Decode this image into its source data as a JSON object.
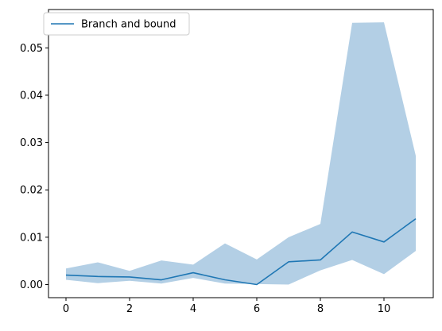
{
  "chart_data": {
    "type": "line",
    "title": "",
    "xlabel": "",
    "ylabel": "",
    "xlim": [
      -0.55,
      11.55
    ],
    "ylim": [
      -0.00277,
      0.0581
    ],
    "x": [
      0,
      1,
      2,
      3,
      4,
      5,
      6,
      7,
      8,
      9,
      10,
      11
    ],
    "xticks": [
      0,
      2,
      4,
      6,
      8,
      10
    ],
    "xtick_labels": [
      "0",
      "2",
      "4",
      "6",
      "8",
      "10"
    ],
    "yticks": [
      0.0,
      0.01,
      0.02,
      0.03,
      0.04,
      0.05
    ],
    "ytick_labels": [
      "0.00",
      "0.01",
      "0.02",
      "0.03",
      "0.04",
      "0.05"
    ],
    "grid": false,
    "legend_position": "top-left",
    "series": [
      {
        "name": "Branch and bound",
        "color": "#1f77b4",
        "values": [
          0.002,
          0.0017,
          0.0016,
          0.001,
          0.0025,
          0.001,
          0.0,
          0.0048,
          0.0052,
          0.0111,
          0.009,
          0.0139
        ],
        "band_lower": [
          0.001,
          0.0003,
          0.0008,
          0.0002,
          0.0014,
          0.0002,
          0.0001,
          0.0,
          0.003,
          0.0052,
          0.0022,
          0.0071
        ],
        "band_upper": [
          0.0034,
          0.0047,
          0.0029,
          0.0051,
          0.0042,
          0.0087,
          0.0053,
          0.01,
          0.0128,
          0.0553,
          0.0554,
          0.0272
        ],
        "band_color": "#b3cfe5"
      }
    ]
  }
}
